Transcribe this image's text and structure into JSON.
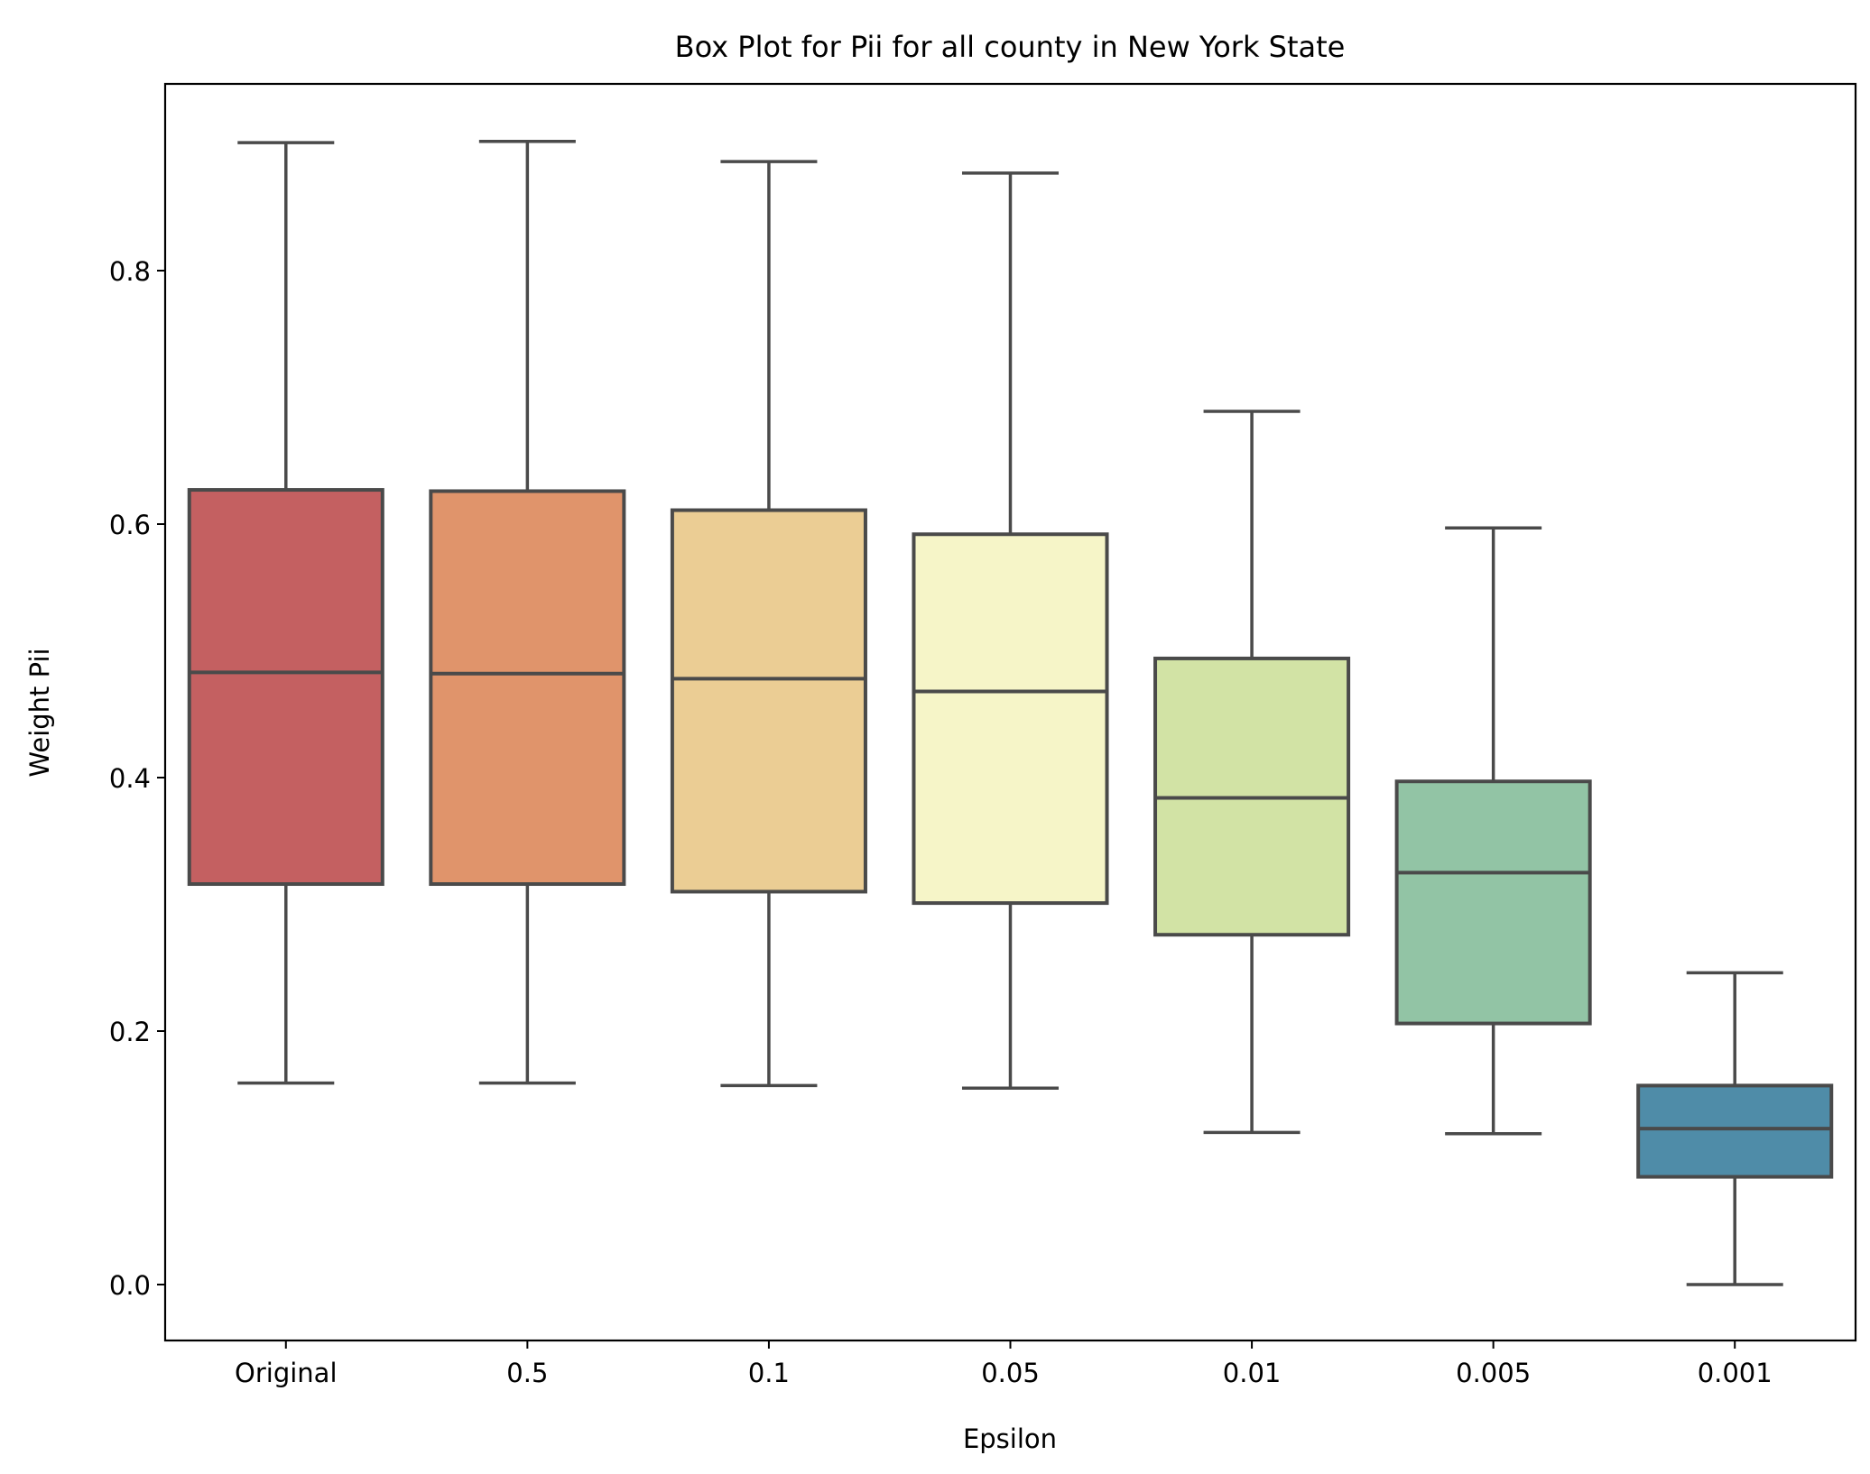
{
  "chart_data": {
    "type": "box",
    "title": "Box Plot for Pii for all county in New York State",
    "xlabel": "Epsilon",
    "ylabel": "Weight Pii",
    "ylim": [
      -0.045,
      0.945
    ],
    "yticks": [
      "0.0",
      "0.2",
      "0.4",
      "0.6",
      "0.8"
    ],
    "ytick_values": [
      0.0,
      0.2,
      0.4,
      0.6,
      0.8
    ],
    "categories": [
      "Original",
      "0.5",
      "0.1",
      "0.05",
      "0.01",
      "0.005",
      "0.001"
    ],
    "grid": false,
    "legend": "none",
    "line_color": "#4a4a4a",
    "boxes": [
      {
        "category": "Original",
        "whislo": 0.159,
        "q1": 0.316,
        "med": 0.483,
        "q3": 0.627,
        "whishi": 0.901,
        "color": "#c46061"
      },
      {
        "category": "0.5",
        "whislo": 0.159,
        "q1": 0.316,
        "med": 0.482,
        "q3": 0.626,
        "whishi": 0.902,
        "color": "#e0946b"
      },
      {
        "category": "0.1",
        "whislo": 0.157,
        "q1": 0.31,
        "med": 0.478,
        "q3": 0.611,
        "whishi": 0.886,
        "color": "#ebcd94"
      },
      {
        "category": "0.05",
        "whislo": 0.155,
        "q1": 0.301,
        "med": 0.468,
        "q3": 0.592,
        "whishi": 0.877,
        "color": "#f6f5c8"
      },
      {
        "category": "0.01",
        "whislo": 0.12,
        "q1": 0.276,
        "med": 0.384,
        "q3": 0.494,
        "whishi": 0.689,
        "color": "#d2e3a5"
      },
      {
        "category": "0.005",
        "whislo": 0.119,
        "q1": 0.206,
        "med": 0.325,
        "q3": 0.397,
        "whishi": 0.597,
        "color": "#92c4a5"
      },
      {
        "category": "0.001",
        "whislo": 0.0,
        "q1": 0.085,
        "med": 0.123,
        "q3": 0.157,
        "whishi": 0.246,
        "color": "#4f8ca8"
      }
    ]
  }
}
